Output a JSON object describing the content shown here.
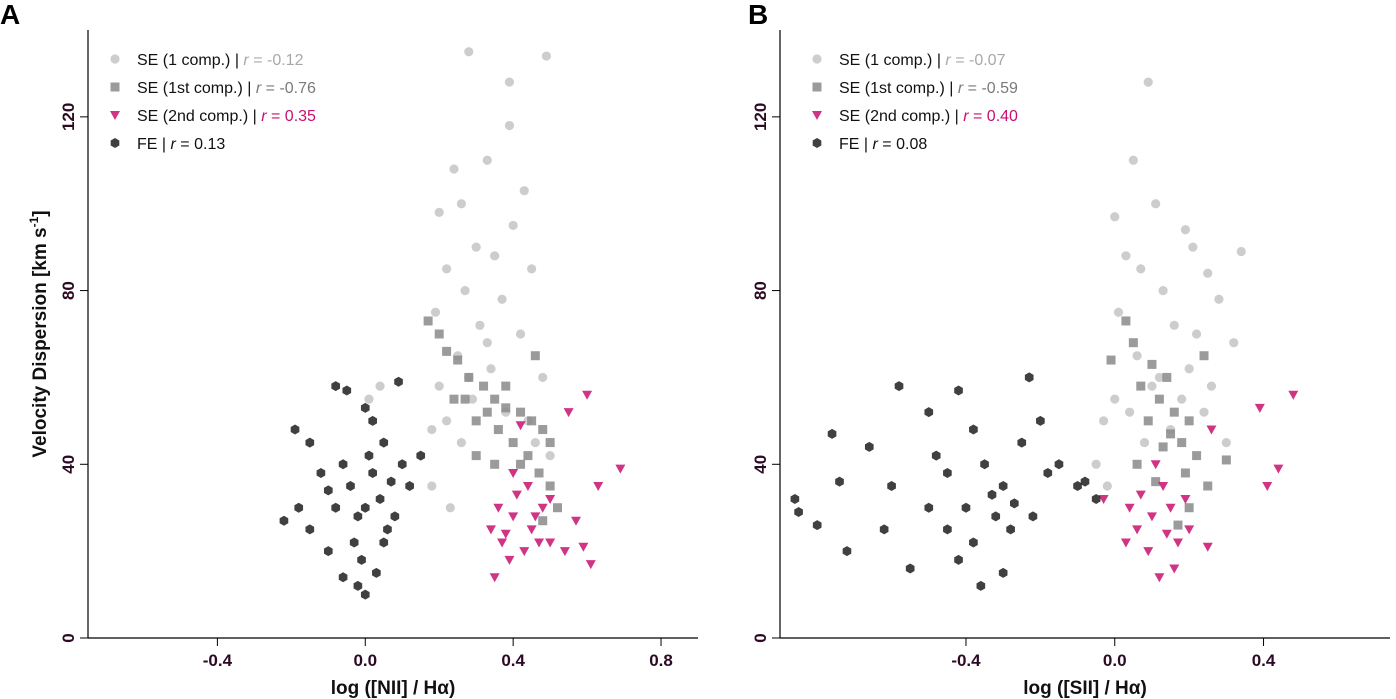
{
  "chart_data": [
    {
      "type": "scatter",
      "panel_label": "A",
      "xlabel": "log ([NII] / Hα)",
      "ylabel": "Velocity Dispersion [km s",
      "ylabel_sup": "-1",
      "ylabel_end": "]",
      "xlim": [
        -0.75,
        0.9
      ],
      "ylim": [
        0,
        140
      ],
      "xticks": [
        -0.4,
        {
          "value": 0,
          "label": "0.0"
        },
        0.4,
        0.8
      ],
      "yticks": [
        0,
        40,
        80,
        120
      ],
      "separator": "|",
      "stat_symbol": "r",
      "stat_relation": "=",
      "series": [
        {
          "name": "SE (1 comp.)",
          "marker": "circle",
          "color": "#c4c4c4",
          "r": -0.12,
          "r_color": "#a8a8a8",
          "x": [
            0.28,
            0.49,
            0.39,
            0.39,
            0.33,
            0.24,
            0.43,
            0.2,
            0.26,
            0.4,
            0.3,
            0.22,
            0.35,
            0.45,
            0.27,
            0.37,
            0.19,
            0.31,
            0.42,
            0.25,
            0.34,
            0.48,
            0.2,
            0.29,
            0.38,
            0.46,
            0.18,
            0.26,
            0.5,
            0.18,
            0.23,
            0.04,
            0.01,
            0.33,
            0.28,
            0.22,
            0.44
          ],
          "y": [
            135,
            134,
            128,
            118,
            110,
            108,
            103,
            98,
            100,
            95,
            90,
            85,
            88,
            85,
            80,
            78,
            75,
            72,
            70,
            65,
            62,
            60,
            58,
            55,
            52,
            45,
            48,
            45,
            42,
            35,
            30,
            58,
            55,
            68,
            60,
            50,
            50
          ]
        },
        {
          "name": "SE (1st comp.)",
          "marker": "square",
          "color": "#8a8a8a",
          "r": -0.76,
          "r_color": "#7a7a7a",
          "x": [
            0.17,
            0.2,
            0.22,
            0.25,
            0.28,
            0.32,
            0.35,
            0.38,
            0.42,
            0.45,
            0.48,
            0.5,
            0.3,
            0.36,
            0.4,
            0.44,
            0.47,
            0.5,
            0.52,
            0.38,
            0.27,
            0.33,
            0.42,
            0.48,
            0.46,
            0.24,
            0.3,
            0.35
          ],
          "y": [
            73,
            70,
            66,
            64,
            60,
            58,
            55,
            53,
            52,
            50,
            48,
            45,
            50,
            48,
            45,
            42,
            38,
            35,
            30,
            58,
            55,
            52,
            40,
            27,
            65,
            55,
            42,
            40
          ]
        },
        {
          "name": "SE (2nd comp.)",
          "marker": "triangle",
          "color": "#c8106e",
          "r": 0.35,
          "r_color": "#c8106e",
          "x": [
            0.55,
            0.6,
            0.69,
            0.63,
            0.59,
            0.61,
            0.54,
            0.5,
            0.45,
            0.4,
            0.36,
            0.38,
            0.43,
            0.48,
            0.41,
            0.37,
            0.44,
            0.35,
            0.39,
            0.46,
            0.5,
            0.42,
            0.34,
            0.47,
            0.4,
            0.57
          ],
          "y": [
            52,
            56,
            39,
            35,
            21,
            17,
            20,
            22,
            25,
            28,
            30,
            24,
            20,
            30,
            33,
            22,
            35,
            14,
            18,
            28,
            32,
            49,
            25,
            22,
            38,
            27
          ]
        },
        {
          "name": "FE",
          "marker": "hexagon",
          "color": "#1e1e1e",
          "r": 0.13,
          "r_color": "#111111",
          "x": [
            -0.22,
            -0.19,
            -0.15,
            -0.12,
            -0.08,
            -0.05,
            0.0,
            0.02,
            0.05,
            0.09,
            0.15,
            0.12,
            0.08,
            0.05,
            0.03,
            0.0,
            -0.02,
            -0.06,
            -0.1,
            -0.15,
            -0.18,
            -0.04,
            0.0,
            0.02,
            -0.02,
            0.04,
            -0.06,
            0.06,
            -0.08,
            0.01,
            -0.03,
            0.07,
            -0.01,
            -0.1,
            0.1
          ],
          "y": [
            27,
            48,
            45,
            38,
            58,
            57,
            53,
            50,
            45,
            59,
            42,
            35,
            28,
            22,
            15,
            10,
            12,
            14,
            20,
            25,
            30,
            35,
            30,
            38,
            28,
            32,
            40,
            25,
            30,
            42,
            22,
            36,
            18,
            34,
            40
          ]
        }
      ]
    },
    {
      "type": "scatter",
      "panel_label": "B",
      "xlabel": "log ([SII] / Hα)",
      "xlim": [
        -0.9,
        0.74
      ],
      "ylim": [
        0,
        140
      ],
      "xticks": [
        -0.4,
        {
          "value": 0,
          "label": "0.0"
        },
        0.4
      ],
      "yticks": [
        0,
        40,
        80,
        120
      ],
      "separator": "|",
      "stat_symbol": "r",
      "stat_relation": "=",
      "series": [
        {
          "name": "SE (1 comp.)",
          "marker": "circle",
          "color": "#c4c4c4",
          "r": -0.07,
          "r_color": "#a8a8a8",
          "x": [
            0.09,
            0.05,
            0.11,
            0.0,
            0.19,
            0.34,
            0.21,
            0.03,
            0.07,
            0.25,
            0.13,
            0.28,
            0.01,
            0.16,
            0.32,
            0.06,
            0.2,
            0.1,
            0.0,
            0.24,
            -0.03,
            0.15,
            0.08,
            -0.05,
            0.3,
            0.04,
            0.12,
            0.18,
            -0.02,
            0.22,
            0.26
          ],
          "y": [
            128,
            110,
            100,
            97,
            94,
            89,
            90,
            88,
            85,
            84,
            80,
            78,
            75,
            72,
            68,
            65,
            62,
            58,
            55,
            52,
            50,
            48,
            45,
            40,
            45,
            52,
            60,
            55,
            35,
            70,
            58
          ]
        },
        {
          "name": "SE (1st comp.)",
          "marker": "square",
          "color": "#8a8a8a",
          "r": -0.59,
          "r_color": "#7a7a7a",
          "x": [
            0.03,
            -0.01,
            0.05,
            0.1,
            0.14,
            0.07,
            0.12,
            0.16,
            0.2,
            0.15,
            0.18,
            0.22,
            0.3,
            0.25,
            0.2,
            0.17,
            0.09,
            0.13,
            0.24,
            0.06,
            0.19,
            0.11
          ],
          "y": [
            73,
            64,
            68,
            63,
            60,
            58,
            55,
            52,
            50,
            47,
            45,
            42,
            41,
            35,
            30,
            26,
            50,
            44,
            65,
            40,
            38,
            36
          ]
        },
        {
          "name": "SE (2nd comp.)",
          "marker": "triangle",
          "color": "#c8106e",
          "r": 0.4,
          "r_label": "0.40",
          "r_color": "#c8106e",
          "x": [
            0.48,
            0.39,
            0.44,
            0.41,
            0.26,
            -0.03,
            0.04,
            0.06,
            0.1,
            0.14,
            0.17,
            0.2,
            0.25,
            0.12,
            0.16,
            0.09,
            0.07,
            0.13,
            0.19,
            0.03,
            0.11,
            0.15
          ],
          "y": [
            56,
            53,
            39,
            35,
            48,
            32,
            30,
            25,
            28,
            24,
            22,
            25,
            21,
            14,
            16,
            20,
            33,
            35,
            32,
            22,
            40,
            30
          ]
        },
        {
          "name": "FE",
          "marker": "hexagon",
          "color": "#1e1e1e",
          "r": 0.08,
          "r_color": "#111111",
          "x": [
            -0.86,
            -0.85,
            -0.8,
            -0.76,
            -0.74,
            -0.72,
            -0.66,
            -0.62,
            -0.58,
            -0.55,
            -0.5,
            -0.45,
            -0.42,
            -0.38,
            -0.35,
            -0.3,
            -0.25,
            -0.2,
            -0.18,
            -0.1,
            -0.15,
            -0.23,
            -0.4,
            -0.32,
            -0.38,
            -0.42,
            -0.36,
            -0.3,
            -0.28,
            -0.45,
            -0.5,
            -0.33,
            -0.27,
            -0.48,
            -0.22,
            -0.6,
            -0.05,
            -0.08
          ],
          "y": [
            32,
            29,
            26,
            47,
            36,
            20,
            44,
            25,
            58,
            16,
            52,
            38,
            57,
            48,
            40,
            35,
            45,
            50,
            38,
            35,
            40,
            60,
            30,
            28,
            22,
            18,
            12,
            15,
            25,
            25,
            30,
            33,
            31,
            42,
            28,
            35,
            32,
            36
          ]
        }
      ]
    }
  ]
}
